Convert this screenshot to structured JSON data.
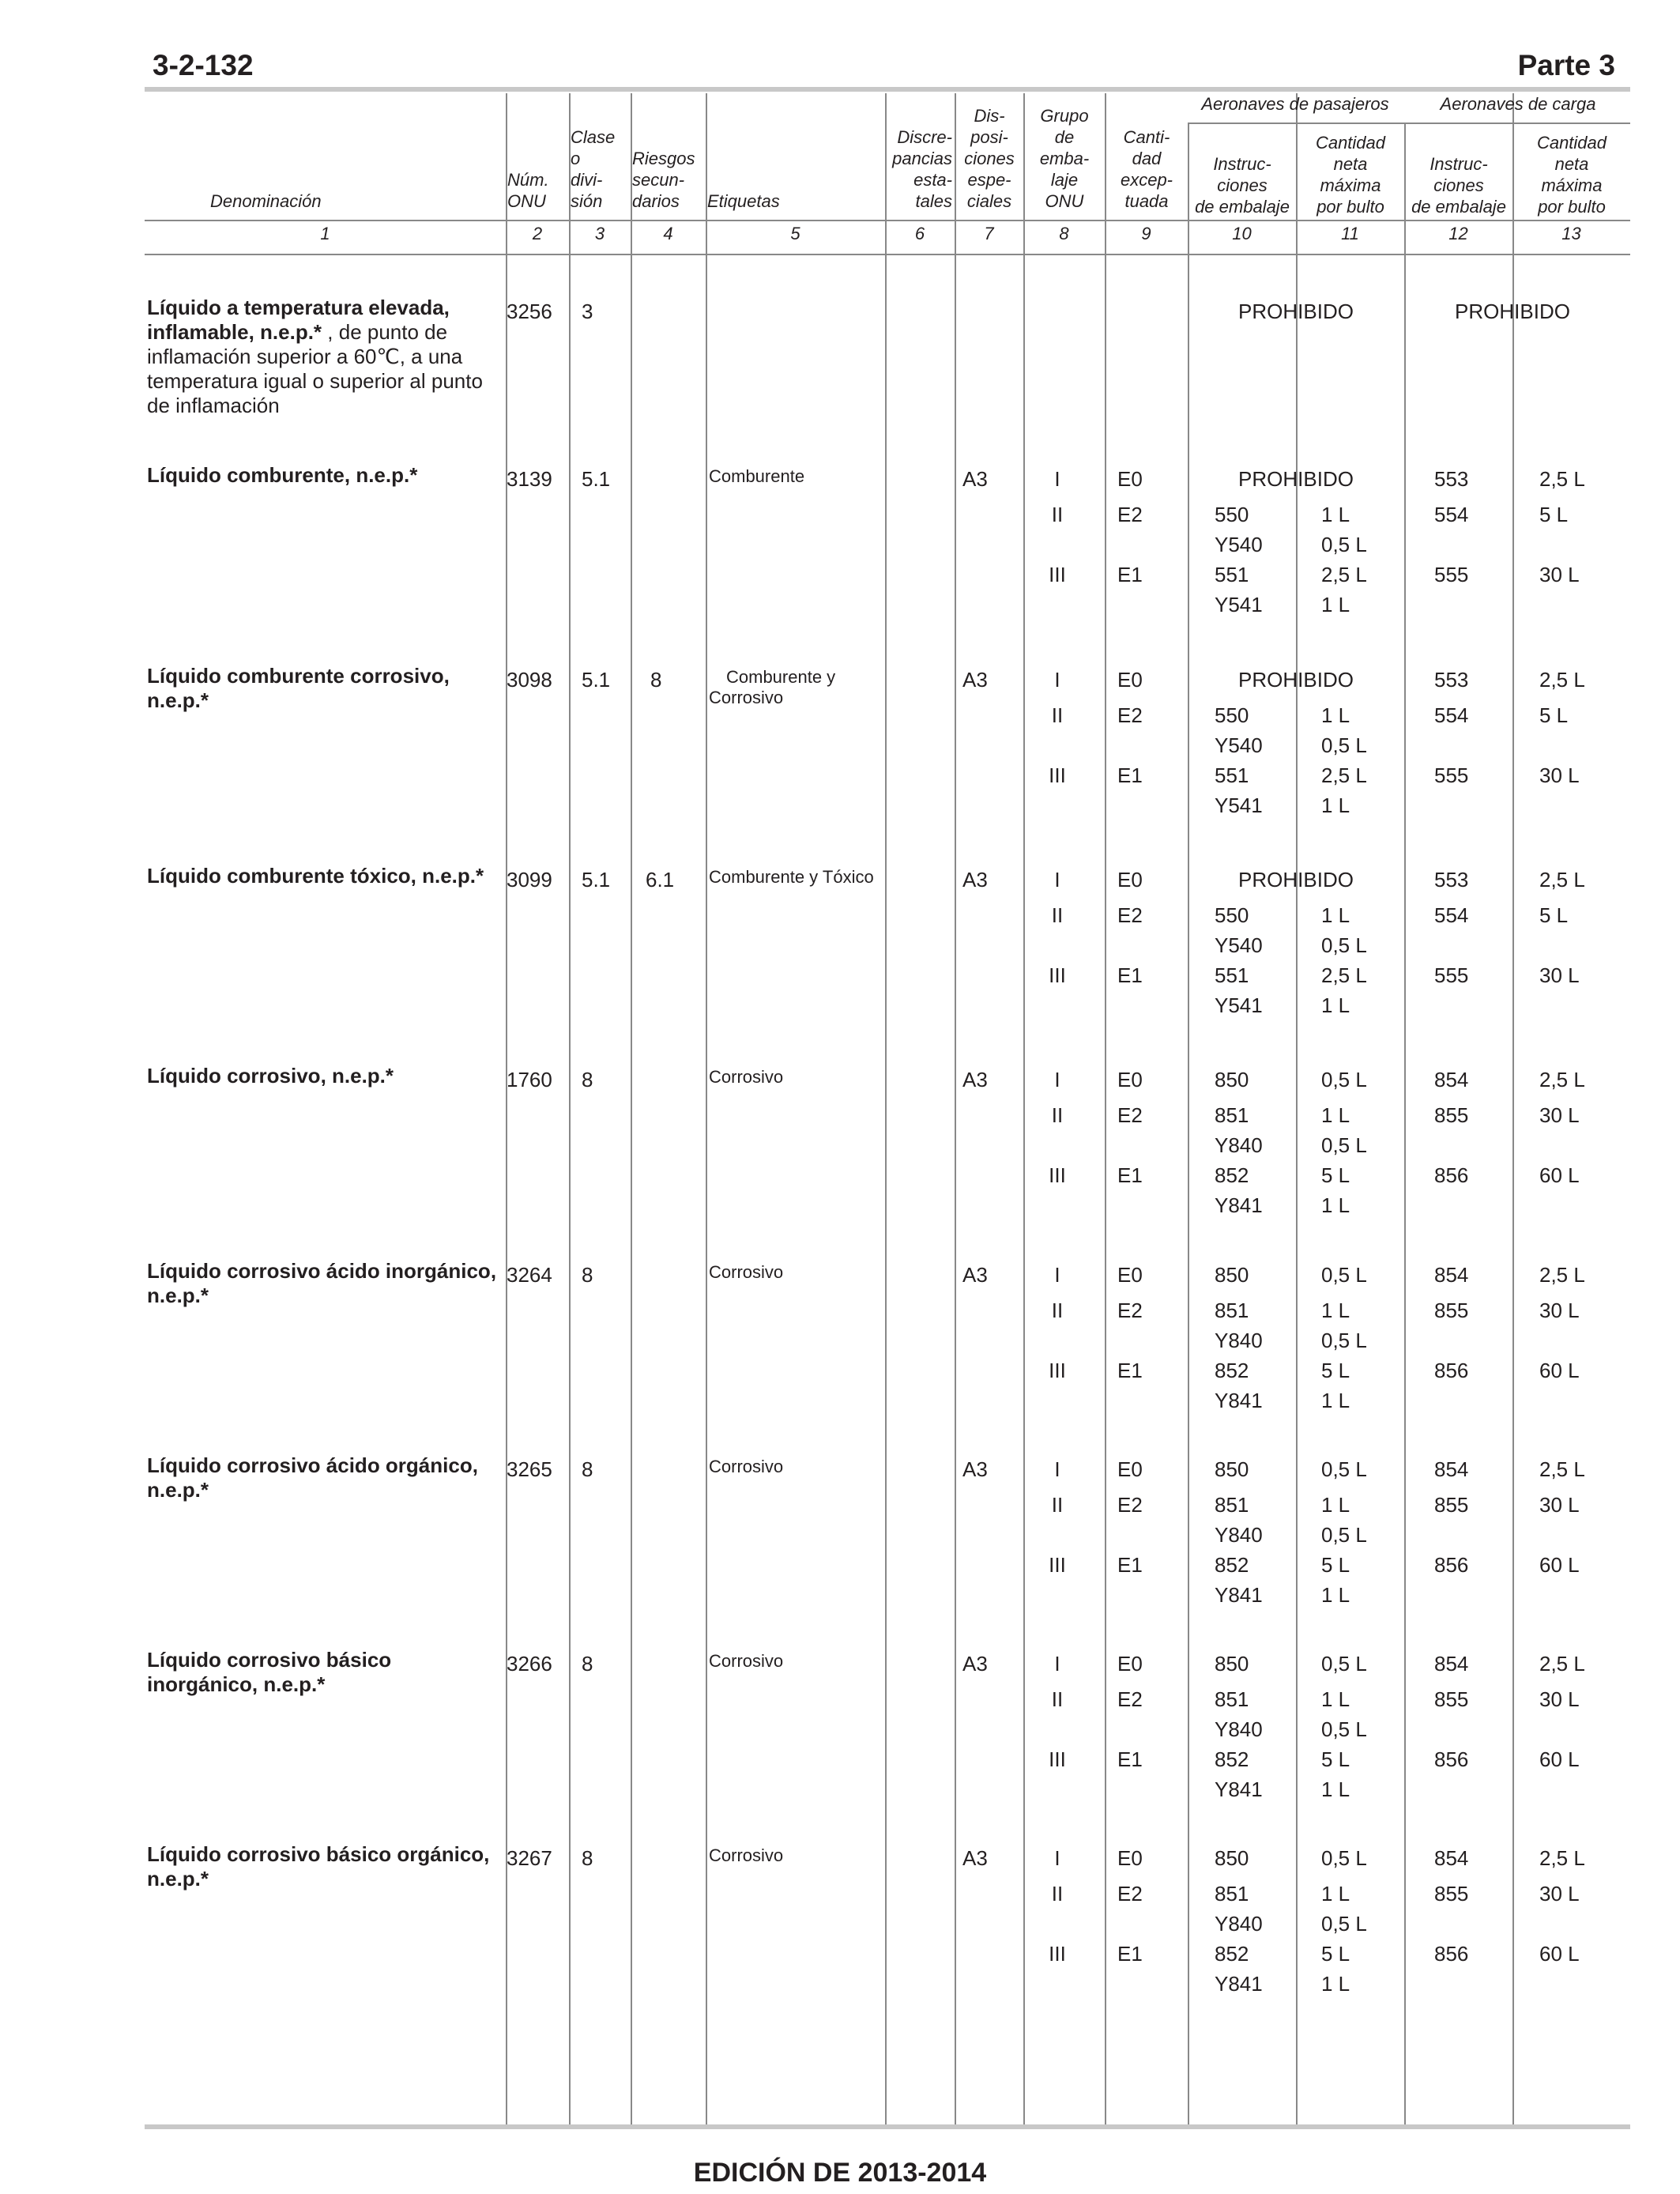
{
  "page": {
    "number": "3-2-132",
    "part": "Parte 3",
    "footer": "EDICIÓN DE 2013-2014"
  },
  "headers": {
    "c1": "Denominación",
    "c2": [
      "Núm.",
      "ONU"
    ],
    "c3": [
      "Clase",
      "o",
      "divi-",
      "sión"
    ],
    "c4": [
      "Riesgos",
      "secun-",
      "darios"
    ],
    "c5": "Etiquetas",
    "c6": [
      "Discre-",
      "pancias",
      "esta-",
      "tales"
    ],
    "c7": [
      "Dis-",
      "posi-",
      "ciones",
      "espe-",
      "ciales"
    ],
    "c8": [
      "Grupo",
      "de",
      "emba-",
      "laje",
      "ONU"
    ],
    "c9": [
      "Canti-",
      "dad",
      "excep-",
      "tuada"
    ],
    "group_pax": "Aeronaves de pasajeros",
    "group_cargo": "Aeronaves de carga",
    "c10": [
      "Instruc-",
      "ciones",
      "de embalaje"
    ],
    "c11": [
      "Cantidad",
      "neta",
      "máxima",
      "por bulto"
    ],
    "c12": [
      "Instruc-",
      "ciones",
      "de embalaje"
    ],
    "c13": [
      "Cantidad",
      "neta",
      "máxima",
      "por bulto"
    ],
    "numbers": [
      "1",
      "2",
      "3",
      "4",
      "5",
      "6",
      "7",
      "8",
      "9",
      "10",
      "11",
      "12",
      "13"
    ]
  },
  "entries": [
    {
      "bold": "Líquido a temperatura elevada, inflamable, n.e.p.*",
      "normal": " , de punto de inflamación superior a 60℃, a una temperatura igual o superior al punto de inflamación",
      "un": "3256",
      "class": "3",
      "sub": "",
      "label": "",
      "sp": "",
      "rows": [
        {
          "pg": "",
          "eq": "",
          "pi": "PROHIBIDO",
          "pq": "",
          "ci": "PROHIBIDO",
          "cq": ""
        }
      ]
    },
    {
      "bold": "Líquido comburente, n.e.p.*",
      "normal": "",
      "un": "3139",
      "class": "5.1",
      "sub": "",
      "label": "Comburente",
      "sp": "A3",
      "rows": [
        {
          "pg": "I",
          "eq": "E0",
          "pi": "PROHIBIDO",
          "pq": "",
          "ci": "553",
          "cq": "2,5 L"
        },
        {
          "pg": "II",
          "eq": "E2",
          "pi": "550",
          "pq": "1 L",
          "ci": "554",
          "cq": "5 L"
        },
        {
          "pg": "",
          "eq": "",
          "pi": "Y540",
          "pq": "0,5 L",
          "ci": "",
          "cq": ""
        },
        {
          "pg": "III",
          "eq": "E1",
          "pi": "551",
          "pq": "2,5 L",
          "ci": "555",
          "cq": "30 L"
        },
        {
          "pg": "",
          "eq": "",
          "pi": "Y541",
          "pq": "1 L",
          "ci": "",
          "cq": ""
        }
      ]
    },
    {
      "bold": "Líquido comburente corrosivo, n.e.p.*",
      "normal": "",
      "un": "3098",
      "class": "5.1",
      "sub": "8",
      "label": "Comburente y Corrosivo",
      "sp": "A3",
      "rows": [
        {
          "pg": "I",
          "eq": "E0",
          "pi": "PROHIBIDO",
          "pq": "",
          "ci": "553",
          "cq": "2,5 L"
        },
        {
          "pg": "II",
          "eq": "E2",
          "pi": "550",
          "pq": "1 L",
          "ci": "554",
          "cq": "5 L"
        },
        {
          "pg": "",
          "eq": "",
          "pi": "Y540",
          "pq": "0,5 L",
          "ci": "",
          "cq": ""
        },
        {
          "pg": "III",
          "eq": "E1",
          "pi": "551",
          "pq": "2,5 L",
          "ci": "555",
          "cq": "30 L"
        },
        {
          "pg": "",
          "eq": "",
          "pi": "Y541",
          "pq": "1 L",
          "ci": "",
          "cq": ""
        }
      ]
    },
    {
      "bold": "Líquido comburente tóxico, n.e.p.*",
      "normal": "",
      "un": "3099",
      "class": "5.1",
      "sub": "6.1",
      "label": "Comburente y Tóxico",
      "sp": "A3",
      "rows": [
        {
          "pg": "I",
          "eq": "E0",
          "pi": "PROHIBIDO",
          "pq": "",
          "ci": "553",
          "cq": "2,5 L"
        },
        {
          "pg": "II",
          "eq": "E2",
          "pi": "550",
          "pq": "1 L",
          "ci": "554",
          "cq": "5 L"
        },
        {
          "pg": "",
          "eq": "",
          "pi": "Y540",
          "pq": "0,5 L",
          "ci": "",
          "cq": ""
        },
        {
          "pg": "III",
          "eq": "E1",
          "pi": "551",
          "pq": "2,5 L",
          "ci": "555",
          "cq": "30 L"
        },
        {
          "pg": "",
          "eq": "",
          "pi": "Y541",
          "pq": "1 L",
          "ci": "",
          "cq": ""
        }
      ]
    },
    {
      "bold": "Líquido corrosivo, n.e.p.*",
      "normal": "",
      "un": "1760",
      "class": "8",
      "sub": "",
      "label": "Corrosivo",
      "sp": "A3",
      "rows": [
        {
          "pg": "I",
          "eq": "E0",
          "pi": "850",
          "pq": "0,5 L",
          "ci": "854",
          "cq": "2,5 L"
        },
        {
          "pg": "II",
          "eq": "E2",
          "pi": "851",
          "pq": "1 L",
          "ci": "855",
          "cq": "30 L"
        },
        {
          "pg": "",
          "eq": "",
          "pi": "Y840",
          "pq": "0,5 L",
          "ci": "",
          "cq": ""
        },
        {
          "pg": "III",
          "eq": "E1",
          "pi": "852",
          "pq": "5 L",
          "ci": "856",
          "cq": "60 L"
        },
        {
          "pg": "",
          "eq": "",
          "pi": "Y841",
          "pq": "1 L",
          "ci": "",
          "cq": ""
        }
      ]
    },
    {
      "bold": "Líquido corrosivo ácido inorgánico, n.e.p.*",
      "normal": "",
      "un": "3264",
      "class": "8",
      "sub": "",
      "label": "Corrosivo",
      "sp": "A3",
      "rows": [
        {
          "pg": "I",
          "eq": "E0",
          "pi": "850",
          "pq": "0,5 L",
          "ci": "854",
          "cq": "2,5 L"
        },
        {
          "pg": "II",
          "eq": "E2",
          "pi": "851",
          "pq": "1 L",
          "ci": "855",
          "cq": "30 L"
        },
        {
          "pg": "",
          "eq": "",
          "pi": "Y840",
          "pq": "0,5 L",
          "ci": "",
          "cq": ""
        },
        {
          "pg": "III",
          "eq": "E1",
          "pi": "852",
          "pq": "5 L",
          "ci": "856",
          "cq": "60 L"
        },
        {
          "pg": "",
          "eq": "",
          "pi": "Y841",
          "pq": "1 L",
          "ci": "",
          "cq": ""
        }
      ]
    },
    {
      "bold": "Líquido corrosivo ácido orgánico, n.e.p.*",
      "normal": "",
      "un": "3265",
      "class": "8",
      "sub": "",
      "label": "Corrosivo",
      "sp": "A3",
      "rows": [
        {
          "pg": "I",
          "eq": "E0",
          "pi": "850",
          "pq": "0,5 L",
          "ci": "854",
          "cq": "2,5 L"
        },
        {
          "pg": "II",
          "eq": "E2",
          "pi": "851",
          "pq": "1 L",
          "ci": "855",
          "cq": "30 L"
        },
        {
          "pg": "",
          "eq": "",
          "pi": "Y840",
          "pq": "0,5 L",
          "ci": "",
          "cq": ""
        },
        {
          "pg": "III",
          "eq": "E1",
          "pi": "852",
          "pq": "5 L",
          "ci": "856",
          "cq": "60 L"
        },
        {
          "pg": "",
          "eq": "",
          "pi": "Y841",
          "pq": "1 L",
          "ci": "",
          "cq": ""
        }
      ]
    },
    {
      "bold": "Líquido corrosivo básico inorgánico, n.e.p.*",
      "normal": "",
      "un": "3266",
      "class": "8",
      "sub": "",
      "label": "Corrosivo",
      "sp": "A3",
      "rows": [
        {
          "pg": "I",
          "eq": "E0",
          "pi": "850",
          "pq": "0,5 L",
          "ci": "854",
          "cq": "2,5 L"
        },
        {
          "pg": "II",
          "eq": "E2",
          "pi": "851",
          "pq": "1 L",
          "ci": "855",
          "cq": "30 L"
        },
        {
          "pg": "",
          "eq": "",
          "pi": "Y840",
          "pq": "0,5 L",
          "ci": "",
          "cq": ""
        },
        {
          "pg": "III",
          "eq": "E1",
          "pi": "852",
          "pq": "5 L",
          "ci": "856",
          "cq": "60 L"
        },
        {
          "pg": "",
          "eq": "",
          "pi": "Y841",
          "pq": "1 L",
          "ci": "",
          "cq": ""
        }
      ]
    },
    {
      "bold": "Líquido corrosivo básico orgánico, n.e.p.*",
      "normal": "",
      "un": "3267",
      "class": "8",
      "sub": "",
      "label": "Corrosivo",
      "sp": "A3",
      "rows": [
        {
          "pg": "I",
          "eq": "E0",
          "pi": "850",
          "pq": "0,5 L",
          "ci": "854",
          "cq": "2,5 L"
        },
        {
          "pg": "II",
          "eq": "E2",
          "pi": "851",
          "pq": "1 L",
          "ci": "855",
          "cq": "30 L"
        },
        {
          "pg": "",
          "eq": "",
          "pi": "Y840",
          "pq": "0,5 L",
          "ci": "",
          "cq": ""
        },
        {
          "pg": "III",
          "eq": "E1",
          "pi": "852",
          "pq": "5 L",
          "ci": "856",
          "cq": "60 L"
        },
        {
          "pg": "",
          "eq": "",
          "pi": "Y841",
          "pq": "1 L",
          "ci": "",
          "cq": ""
        }
      ]
    }
  ]
}
